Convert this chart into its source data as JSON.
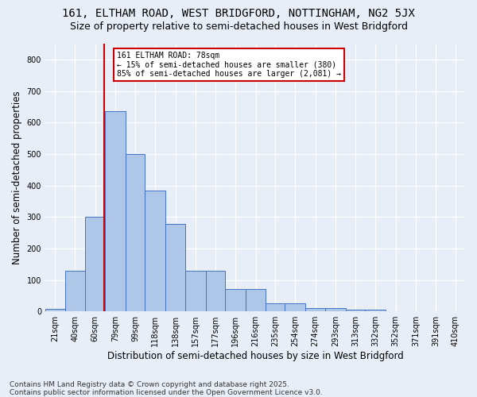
{
  "title1": "161, ELTHAM ROAD, WEST BRIDGFORD, NOTTINGHAM, NG2 5JX",
  "title2": "Size of property relative to semi-detached houses in West Bridgford",
  "xlabel": "Distribution of semi-detached houses by size in West Bridgford",
  "ylabel": "Number of semi-detached properties",
  "footnote": "Contains HM Land Registry data © Crown copyright and database right 2025.\nContains public sector information licensed under the Open Government Licence v3.0.",
  "bin_labels": [
    "21sqm",
    "40sqm",
    "60sqm",
    "79sqm",
    "99sqm",
    "118sqm",
    "138sqm",
    "157sqm",
    "177sqm",
    "196sqm",
    "216sqm",
    "235sqm",
    "254sqm",
    "274sqm",
    "293sqm",
    "313sqm",
    "332sqm",
    "352sqm",
    "371sqm",
    "391sqm",
    "410sqm"
  ],
  "bar_values": [
    8,
    128,
    301,
    635,
    500,
    383,
    278,
    130,
    130,
    71,
    71,
    25,
    25,
    11,
    11,
    5,
    5,
    0,
    0,
    0,
    0
  ],
  "bin_edges": [
    21,
    40,
    60,
    79,
    99,
    118,
    138,
    157,
    177,
    196,
    216,
    235,
    254,
    274,
    293,
    313,
    332,
    352,
    371,
    391,
    410
  ],
  "bar_color": "#aec6e8",
  "bar_edge_color": "#4472c4",
  "background_color": "#e8eef7",
  "vline_x": 78,
  "vline_color": "#cc0000",
  "annotation_text": "161 ELTHAM ROAD: 78sqm\n← 15% of semi-detached houses are smaller (380)\n85% of semi-detached houses are larger (2,081) →",
  "annotation_box_color": "#ffffff",
  "annotation_box_edge": "#cc0000",
  "ylim": [
    0,
    850
  ],
  "yticks": [
    0,
    100,
    200,
    300,
    400,
    500,
    600,
    700,
    800
  ],
  "grid_color": "#ffffff",
  "title1_fontsize": 10,
  "title2_fontsize": 9,
  "xlabel_fontsize": 8.5,
  "ylabel_fontsize": 8.5,
  "tick_fontsize": 7,
  "annotation_fontsize": 7,
  "footnote_fontsize": 6.5
}
